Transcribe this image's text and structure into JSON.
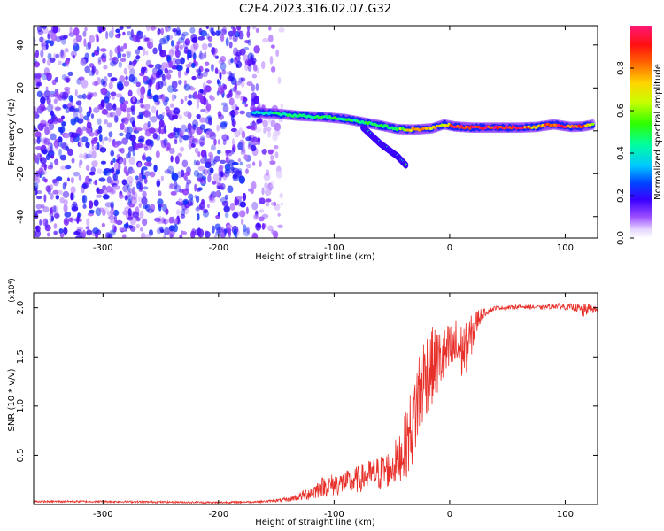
{
  "figure_title": "C2E4.2023.316.02.07.G32",
  "colors": {
    "snr_line": "#e8302a",
    "spectrogram_noise": "#6a00f0",
    "frame": "#000000"
  },
  "chart_data": [
    {
      "type": "heatmap",
      "title": "C2E4.2023.316.02.07.G32",
      "xlabel": "Height of straight line (km)",
      "ylabel": "Frequency (Hz)",
      "xlim": [
        -360,
        128
      ],
      "ylim": [
        -50,
        49
      ],
      "x_ticks": [
        -300,
        -200,
        -100,
        0,
        100
      ],
      "y_ticks": [
        -40,
        -20,
        0,
        20,
        40
      ],
      "x_tick_labels": [
        "-300",
        "-200",
        "-100",
        "0",
        "100"
      ],
      "y_tick_labels": [
        "-40",
        "-20",
        "0",
        "20",
        "40"
      ],
      "grid": false,
      "colormap": "rainbow (white to red)",
      "colorbar": {
        "label": "Normalized spectral amplitude",
        "range": [
          0,
          1
        ],
        "ticks": [
          0.0,
          0.2,
          0.4,
          0.6,
          0.8
        ],
        "tick_labels": [
          "0.0",
          "0.2",
          "0.4",
          "0.6",
          "0.8"
        ]
      },
      "noise_region": {
        "x_range": [
          -360,
          -145
        ],
        "y_range": [
          -50,
          49
        ],
        "amplitude": 0.15
      },
      "signal_track": [
        {
          "x": -170,
          "freq": 8.5,
          "amp": 0.4
        },
        {
          "x": -150,
          "freq": 8.0,
          "amp": 0.45
        },
        {
          "x": -130,
          "freq": 7.0,
          "amp": 0.45
        },
        {
          "x": -110,
          "freq": 6.5,
          "amp": 0.5
        },
        {
          "x": -90,
          "freq": 5.5,
          "amp": 0.5
        },
        {
          "x": -75,
          "freq": 4.0,
          "amp": 0.5
        },
        {
          "x": -60,
          "freq": 2.5,
          "amp": 0.5
        },
        {
          "x": -45,
          "freq": 0.8,
          "amp": 0.55
        },
        {
          "x": -30,
          "freq": 0.6,
          "amp": 0.8
        },
        {
          "x": -15,
          "freq": 1.2,
          "amp": 0.7
        },
        {
          "x": -5,
          "freq": 3.0,
          "amp": 0.7
        },
        {
          "x": 5,
          "freq": 2.0,
          "amp": 0.9
        },
        {
          "x": 20,
          "freq": 1.5,
          "amp": 0.97
        },
        {
          "x": 40,
          "freq": 1.5,
          "amp": 0.97
        },
        {
          "x": 60,
          "freq": 1.5,
          "amp": 0.95
        },
        {
          "x": 75,
          "freq": 1.8,
          "amp": 0.7
        },
        {
          "x": 90,
          "freq": 3.0,
          "amp": 0.95
        },
        {
          "x": 105,
          "freq": 1.8,
          "amp": 0.9
        },
        {
          "x": 115,
          "freq": 2.0,
          "amp": 0.85
        },
        {
          "x": 125,
          "freq": 3.0,
          "amp": 0.7
        }
      ],
      "signal_branch": [
        {
          "x": -75,
          "freq": 1.5
        },
        {
          "x": -60,
          "freq": -6.0
        },
        {
          "x": -45,
          "freq": -12.0
        },
        {
          "x": -38,
          "freq": -16.0
        }
      ]
    },
    {
      "type": "line",
      "xlabel": "Height of straight line (km)",
      "ylabel": "SNR (10 * v/v)",
      "y_scale_label": "(x10⁴)",
      "xlim": [
        -360,
        128
      ],
      "ylim": [
        0,
        2.15
      ],
      "x_ticks": [
        -300,
        -200,
        -100,
        0,
        100
      ],
      "y_ticks": [
        0.5,
        1.0,
        1.5,
        2.0
      ],
      "x_tick_labels": [
        "-300",
        "-200",
        "-100",
        "0",
        "100"
      ],
      "y_tick_labels": [
        "0.5",
        "1.0",
        "1.5",
        "2.0"
      ],
      "grid": false,
      "series": [
        {
          "color": "#e8302a",
          "x": [
            -360,
            -300,
            -200,
            -160,
            -140,
            -130,
            -120,
            -110,
            -100,
            -90,
            -80,
            -70,
            -60,
            -50,
            -40,
            -35,
            -30,
            -25,
            -20,
            -15,
            -10,
            -5,
            0,
            5,
            10,
            15,
            20,
            25,
            30,
            40,
            50,
            60,
            70,
            80,
            90,
            100,
            110,
            115,
            120,
            128
          ],
          "values": [
            0.03,
            0.03,
            0.02,
            0.03,
            0.05,
            0.08,
            0.12,
            0.18,
            0.2,
            0.22,
            0.25,
            0.3,
            0.32,
            0.38,
            0.55,
            0.7,
            0.95,
            1.2,
            1.35,
            1.4,
            1.45,
            1.5,
            1.55,
            1.6,
            1.55,
            1.6,
            1.75,
            1.9,
            1.95,
            2.0,
            2.0,
            2.01,
            2.01,
            2.0,
            2.02,
            2.01,
            2.0,
            1.96,
            1.99,
            1.98
          ],
          "noise_amplitude": [
            0.01,
            0.01,
            0.01,
            0.01,
            0.02,
            0.04,
            0.08,
            0.1,
            0.12,
            0.12,
            0.14,
            0.15,
            0.18,
            0.2,
            0.3,
            0.4,
            0.5,
            0.5,
            0.45,
            0.4,
            0.35,
            0.3,
            0.3,
            0.3,
            0.3,
            0.25,
            0.2,
            0.1,
            0.04,
            0.02,
            0.02,
            0.02,
            0.02,
            0.02,
            0.03,
            0.03,
            0.04,
            0.08,
            0.05,
            0.03
          ]
        }
      ]
    }
  ]
}
